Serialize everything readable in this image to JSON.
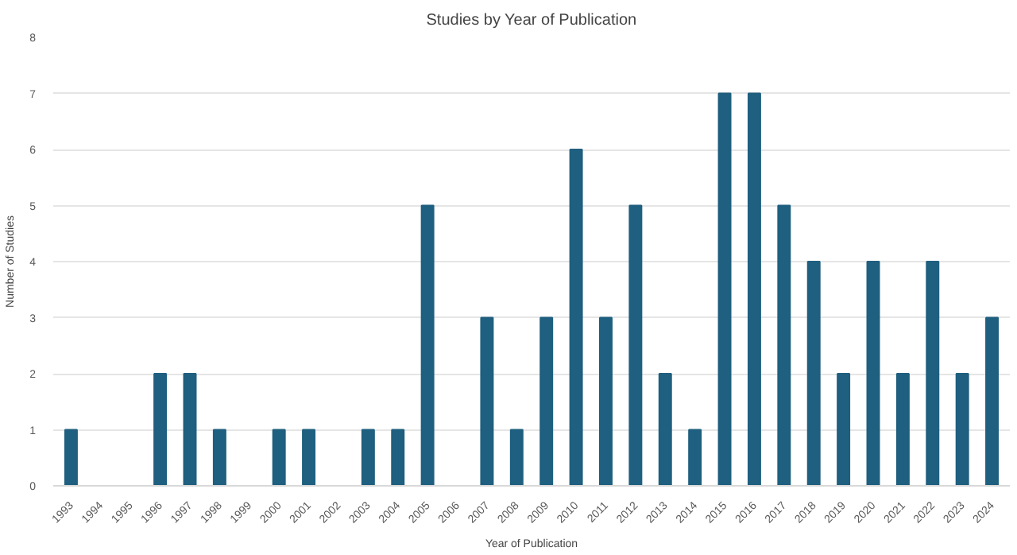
{
  "chart_data": {
    "type": "bar",
    "title": "Studies by Year of Publication",
    "xlabel": "Year of Publication",
    "ylabel": "Number of Studies",
    "categories": [
      "1993",
      "1994",
      "1995",
      "1996",
      "1997",
      "1998",
      "1999",
      "2000",
      "2001",
      "2002",
      "2003",
      "2004",
      "2005",
      "2006",
      "2007",
      "2008",
      "2009",
      "2010",
      "2011",
      "2012",
      "2013",
      "2014",
      "2015",
      "2016",
      "2017",
      "2018",
      "2019",
      "2020",
      "2021",
      "2022",
      "2023",
      "2024"
    ],
    "values": [
      1,
      0,
      0,
      2,
      2,
      1,
      0,
      1,
      1,
      0,
      1,
      1,
      5,
      0,
      3,
      1,
      3,
      6,
      3,
      5,
      2,
      1,
      7,
      7,
      5,
      4,
      2,
      4,
      2,
      4,
      2,
      3
    ],
    "color": "#1f5f7f",
    "ylim": [
      0,
      8
    ],
    "yticks": [
      0,
      1,
      2,
      3,
      4,
      5,
      6,
      7,
      8
    ],
    "grid": "y"
  }
}
